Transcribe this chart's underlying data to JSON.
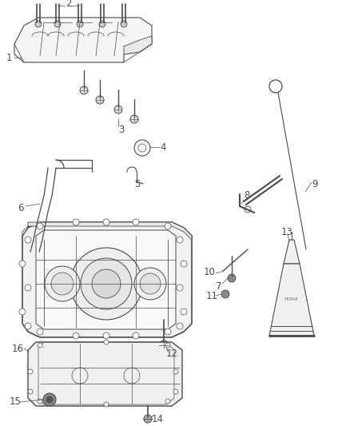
{
  "background_color": "#ffffff",
  "line_color": "#4a4a4a",
  "label_color": "#333333",
  "fig_width": 4.38,
  "fig_height": 5.33,
  "dpi": 100,
  "label_fontsize": 8.5
}
